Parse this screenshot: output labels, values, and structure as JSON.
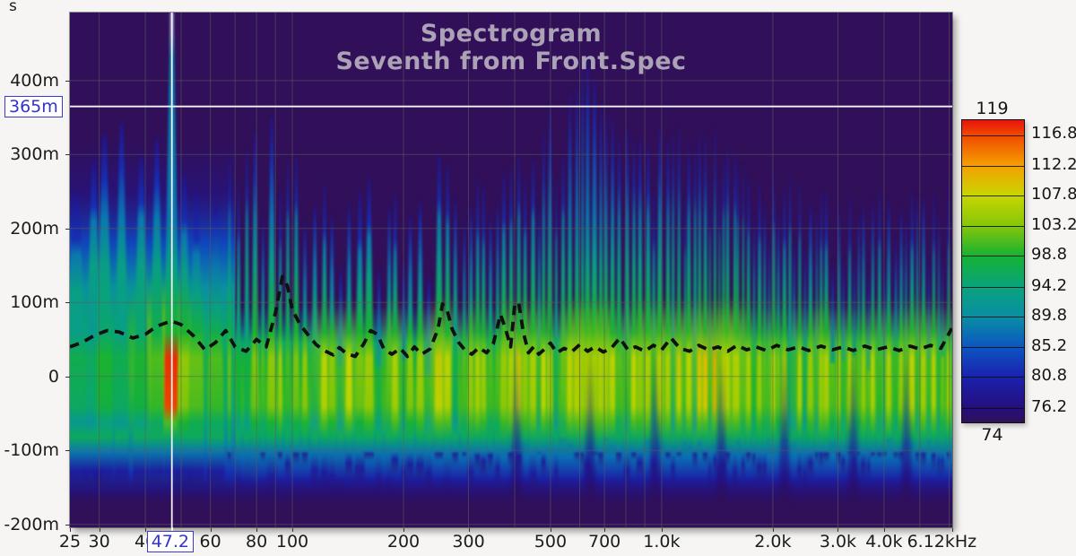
{
  "title": {
    "line1": "Spectrogram",
    "line2": "Seventh from Front.Spec",
    "color": "#aba2b6"
  },
  "chart_data": {
    "type": "heatmap",
    "title": "Spectrogram",
    "subtitle": "Seventh from Front.Spec",
    "x_axis": {
      "label": "Hz",
      "scale": "log",
      "min": 25,
      "max": 6120,
      "ticks": [
        {
          "hz": 25,
          "label": "25"
        },
        {
          "hz": 30,
          "label": "30"
        },
        {
          "hz": 40,
          "label": "40"
        },
        {
          "hz": 60,
          "label": "60"
        },
        {
          "hz": 80,
          "label": "80"
        },
        {
          "hz": 100,
          "label": "100"
        },
        {
          "hz": 200,
          "label": "200"
        },
        {
          "hz": 300,
          "label": "300"
        },
        {
          "hz": 500,
          "label": "500"
        },
        {
          "hz": 700,
          "label": "700"
        },
        {
          "hz": 1000,
          "label": "1.0k"
        },
        {
          "hz": 2000,
          "label": "2.0k"
        },
        {
          "hz": 3000,
          "label": "3.0k"
        },
        {
          "hz": 4000,
          "label": "4.0k"
        },
        {
          "hz": 6120,
          "label": "6.12kHz"
        }
      ],
      "grid_hz": [
        30,
        40,
        50,
        60,
        70,
        80,
        90,
        100,
        200,
        300,
        400,
        500,
        600,
        700,
        800,
        900,
        1000,
        2000,
        3000,
        4000,
        5000,
        6000
      ]
    },
    "y_axis": {
      "unit": "s",
      "top_ms": 492,
      "bottom_ms": -204,
      "ticks": [
        {
          "ms": 400,
          "label": "400m"
        },
        {
          "ms": 300,
          "label": "300m"
        },
        {
          "ms": 200,
          "label": "200m"
        },
        {
          "ms": 100,
          "label": "100m"
        },
        {
          "ms": 0,
          "label": "0"
        },
        {
          "ms": -100,
          "label": "-100m"
        },
        {
          "ms": -200,
          "label": "-200m"
        }
      ],
      "grid_ms": [
        400,
        300,
        200,
        100,
        0,
        -100,
        -200
      ]
    },
    "grid_color": "rgba(92,92,92,0.55)",
    "cursor": {
      "hz": 47.2,
      "hz_label": "47.2",
      "time_ms": 365,
      "time_label": "365m",
      "color": "#f2f2f2"
    },
    "legend": {
      "title_max": "119",
      "title_min": "74",
      "max_db": 119,
      "min_db": 74,
      "levels": [
        116.8,
        112.2,
        107.8,
        103.2,
        98.8,
        94.2,
        89.8,
        85.2,
        80.8,
        76.2
      ]
    },
    "floor_color": "#311059",
    "palette": [
      {
        "db": 74,
        "color": "#2f1058"
      },
      {
        "db": 76.2,
        "color": "#250f7e"
      },
      {
        "db": 80.8,
        "color": "#1a22ae"
      },
      {
        "db": 85.2,
        "color": "#0c55c2"
      },
      {
        "db": 89.8,
        "color": "#0a8fa2"
      },
      {
        "db": 94.2,
        "color": "#09a37c"
      },
      {
        "db": 98.8,
        "color": "#16b232"
      },
      {
        "db": 103.2,
        "color": "#84c60a"
      },
      {
        "db": 107.8,
        "color": "#c8d600"
      },
      {
        "db": 112.2,
        "color": "#f5a000"
      },
      {
        "db": 116.8,
        "color": "#f04800"
      },
      {
        "db": 119,
        "color": "#e8140c"
      }
    ],
    "overlay_line": {
      "style": "dashed",
      "color": "#101010",
      "points": [
        [
          25,
          40
        ],
        [
          27,
          46
        ],
        [
          29,
          55
        ],
        [
          31.5,
          62
        ],
        [
          34,
          60
        ],
        [
          37,
          52
        ],
        [
          40,
          57
        ],
        [
          43,
          68
        ],
        [
          47,
          75
        ],
        [
          50,
          70
        ],
        [
          54,
          55
        ],
        [
          58,
          36
        ],
        [
          62,
          46
        ],
        [
          66,
          62
        ],
        [
          70,
          40
        ],
        [
          75,
          34
        ],
        [
          80,
          50
        ],
        [
          85,
          40
        ],
        [
          90,
          86
        ],
        [
          94,
          135
        ],
        [
          97,
          122
        ],
        [
          100,
          90
        ],
        [
          105,
          70
        ],
        [
          110,
          57
        ],
        [
          116,
          43
        ],
        [
          122,
          35
        ],
        [
          129,
          29
        ],
        [
          134,
          39
        ],
        [
          140,
          31
        ],
        [
          148,
          27
        ],
        [
          156,
          44
        ],
        [
          163,
          62
        ],
        [
          170,
          57
        ],
        [
          177,
          37
        ],
        [
          186,
          30
        ],
        [
          196,
          38
        ],
        [
          205,
          27
        ],
        [
          214,
          40
        ],
        [
          224,
          30
        ],
        [
          236,
          37
        ],
        [
          248,
          64
        ],
        [
          255,
          98
        ],
        [
          263,
          88
        ],
        [
          271,
          64
        ],
        [
          282,
          46
        ],
        [
          293,
          36
        ],
        [
          306,
          30
        ],
        [
          320,
          39
        ],
        [
          336,
          32
        ],
        [
          350,
          44
        ],
        [
          358,
          64
        ],
        [
          366,
          84
        ],
        [
          377,
          66
        ],
        [
          390,
          40
        ],
        [
          400,
          97
        ],
        [
          410,
          100
        ],
        [
          422,
          60
        ],
        [
          436,
          32
        ],
        [
          450,
          40
        ],
        [
          465,
          30
        ],
        [
          482,
          37
        ],
        [
          500,
          45
        ],
        [
          520,
          32
        ],
        [
          545,
          38
        ],
        [
          570,
          33
        ],
        [
          600,
          43
        ],
        [
          630,
          34
        ],
        [
          660,
          40
        ],
        [
          695,
          33
        ],
        [
          730,
          38
        ],
        [
          770,
          52
        ],
        [
          810,
          36
        ],
        [
          850,
          40
        ],
        [
          900,
          34
        ],
        [
          950,
          42
        ],
        [
          1000,
          36
        ],
        [
          1060,
          52
        ],
        [
          1120,
          38
        ],
        [
          1190,
          34
        ],
        [
          1260,
          42
        ],
        [
          1340,
          36
        ],
        [
          1420,
          40
        ],
        [
          1510,
          34
        ],
        [
          1600,
          42
        ],
        [
          1700,
          36
        ],
        [
          1800,
          40
        ],
        [
          1920,
          35
        ],
        [
          2050,
          42
        ],
        [
          2200,
          36
        ],
        [
          2350,
          40
        ],
        [
          2500,
          35
        ],
        [
          2700,
          41
        ],
        [
          2900,
          36
        ],
        [
          3100,
          40
        ],
        [
          3300,
          35
        ],
        [
          3550,
          41
        ],
        [
          3800,
          36
        ],
        [
          4100,
          40
        ],
        [
          4400,
          35
        ],
        [
          4700,
          41
        ],
        [
          5000,
          37
        ],
        [
          5350,
          42
        ],
        [
          5700,
          38
        ],
        [
          5950,
          55
        ],
        [
          6100,
          65
        ]
      ]
    },
    "spectrum": {
      "seed": 7,
      "comb_start_hz": 68,
      "comb_end_hz": 6060,
      "modes": [
        [
          80,
          103,
          330
        ],
        [
          88,
          104,
          355
        ],
        [
          95,
          110,
          398
        ],
        [
          103,
          103,
          300
        ],
        [
          112,
          104,
          255
        ],
        [
          120,
          107,
          272
        ],
        [
          129,
          104,
          232
        ],
        [
          141,
          108,
          238
        ],
        [
          152,
          103,
          252
        ],
        [
          163,
          105,
          268
        ],
        [
          176,
          104,
          232
        ],
        [
          190,
          106,
          252
        ],
        [
          205,
          104,
          226
        ],
        [
          222,
          105,
          242
        ],
        [
          240,
          106,
          282
        ],
        [
          252,
          109,
          302
        ],
        [
          265,
          107,
          282
        ],
        [
          283,
          104,
          262
        ],
        [
          300,
          105,
          242
        ],
        [
          318,
          106,
          282
        ],
        [
          336,
          105,
          262
        ],
        [
          352,
          108,
          302
        ],
        [
          374,
          105,
          272
        ],
        [
          395,
          106,
          282
        ],
        [
          412,
          109,
          312
        ],
        [
          430,
          105,
          282
        ],
        [
          452,
          106,
          302
        ],
        [
          478,
          108,
          342
        ],
        [
          505,
          105,
          362
        ],
        [
          530,
          106,
          382
        ],
        [
          558,
          108,
          392
        ],
        [
          590,
          109,
          408
        ],
        [
          622,
          107,
          425
        ],
        [
          650,
          106,
          402
        ],
        [
          680,
          108,
          382
        ],
        [
          715,
          106,
          362
        ],
        [
          750,
          107,
          352
        ],
        [
          790,
          106,
          342
        ],
        [
          830,
          108,
          332
        ],
        [
          880,
          105,
          322
        ],
        [
          930,
          106,
          312
        ],
        [
          990,
          107,
          342
        ],
        [
          1050,
          106,
          322
        ],
        [
          1120,
          109,
          332
        ],
        [
          1200,
          107,
          312
        ],
        [
          1290,
          110,
          336
        ],
        [
          1380,
          112,
          330
        ],
        [
          1480,
          108,
          312
        ],
        [
          1580,
          107,
          302
        ],
        [
          1700,
          106,
          282
        ],
        [
          1850,
          105,
          262
        ],
        [
          2000,
          106,
          272
        ],
        [
          2150,
          105,
          252
        ],
        [
          2350,
          107,
          262
        ],
        [
          2550,
          105,
          242
        ],
        [
          2750,
          106,
          252
        ],
        [
          3000,
          105,
          242
        ],
        [
          3250,
          106,
          252
        ],
        [
          3500,
          105,
          236
        ],
        [
          3800,
          107,
          246
        ],
        [
          4100,
          106,
          236
        ],
        [
          4400,
          105,
          242
        ],
        [
          4750,
          108,
          252
        ],
        [
          5100,
          106,
          242
        ],
        [
          5500,
          107,
          246
        ],
        [
          5900,
          106,
          256
        ]
      ],
      "lf_columns": [
        [
          26,
          97,
          255,
          26
        ],
        [
          29,
          96,
          300,
          18
        ],
        [
          31,
          99,
          335,
          20
        ],
        [
          34.5,
          97,
          352,
          16
        ],
        [
          39,
          99,
          305,
          18
        ],
        [
          43,
          101,
          330,
          16
        ],
        [
          47.2,
          118,
          492,
          17
        ],
        [
          51,
          104,
          280,
          16
        ],
        [
          55,
          102,
          255,
          18
        ],
        [
          62,
          101,
          238,
          20
        ]
      ],
      "blob": [
        [
          46.5,
          25,
          26,
          64,
          117,
          0.95
        ],
        [
          46,
          18,
          42,
          88,
          112,
          0.8
        ],
        [
          45,
          12,
          58,
          108,
          107,
          0.72
        ],
        [
          44,
          5,
          74,
          128,
          101,
          0.6
        ]
      ],
      "notches_hz": [
        405,
        640,
        960,
        1450,
        2150,
        3300,
        4600
      ]
    }
  }
}
